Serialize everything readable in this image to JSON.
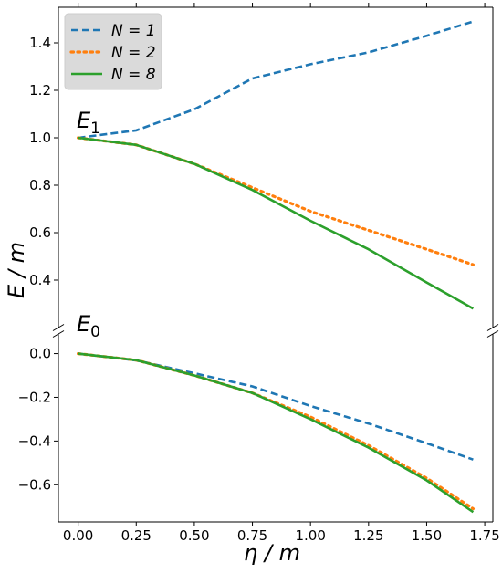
{
  "chart_data": {
    "type": "line",
    "xlabel": "η / m",
    "ylabel": "E / m",
    "x_ticks": [
      0.0,
      0.25,
      0.5,
      0.75,
      1.0,
      1.25,
      1.5,
      1.75
    ],
    "x_tick_labels": [
      "0.00",
      "0.25",
      "0.50",
      "0.75",
      "1.00",
      "1.25",
      "1.50",
      "1.75"
    ],
    "xlim": [
      -0.085,
      1.785
    ],
    "broken_y_axis": true,
    "grid": false,
    "legend": {
      "placement": "top-left",
      "entries": [
        {
          "label": "N = 1",
          "color": "#1f77b4",
          "style": "dashed"
        },
        {
          "label": "N = 2",
          "color": "#ff7f0e",
          "style": "dotted"
        },
        {
          "label": "N = 8",
          "color": "#2ca02c",
          "style": "solid"
        }
      ]
    },
    "panels": [
      {
        "label": "E1",
        "label_main": "E",
        "label_sub": "1",
        "ylim": [
          0.2,
          1.55
        ],
        "y_ticks": [
          0.4,
          0.6,
          0.8,
          1.0,
          1.2,
          1.4
        ],
        "y_tick_labels": [
          "0.4",
          "0.6",
          "0.8",
          "1.0",
          "1.2",
          "1.4"
        ],
        "x": [
          0.0,
          0.25,
          0.5,
          0.75,
          1.0,
          1.25,
          1.5,
          1.7
        ],
        "series": [
          {
            "name": "N = 1",
            "color": "#1f77b4",
            "style": "dashed",
            "values": [
              1.0,
              1.031,
              1.12,
              1.25,
              1.31,
              1.36,
              1.43,
              1.49
            ]
          },
          {
            "name": "N = 2",
            "color": "#ff7f0e",
            "style": "dotted",
            "values": [
              1.0,
              0.97,
              0.89,
              0.79,
              0.69,
              0.61,
              0.53,
              0.465
            ]
          },
          {
            "name": "N = 8",
            "color": "#2ca02c",
            "style": "solid",
            "values": [
              1.0,
              0.97,
              0.89,
              0.78,
              0.65,
              0.53,
              0.39,
              0.28
            ]
          }
        ]
      },
      {
        "label": "E0",
        "label_main": "E",
        "label_sub": "0",
        "ylim": [
          -0.77,
          0.09
        ],
        "y_ticks": [
          0.0,
          -0.2,
          -0.4,
          -0.6
        ],
        "y_tick_labels": [
          "0.0",
          "−0.2",
          "−0.4",
          "−0.6"
        ],
        "x": [
          0.0,
          0.25,
          0.5,
          0.75,
          1.0,
          1.25,
          1.5,
          1.7
        ],
        "series": [
          {
            "name": "N = 1",
            "color": "#1f77b4",
            "style": "dashed",
            "values": [
              0.0,
              -0.031,
              -0.09,
              -0.15,
              -0.24,
              -0.32,
              -0.41,
              -0.485
            ]
          },
          {
            "name": "N = 2",
            "color": "#ff7f0e",
            "style": "dotted",
            "values": [
              0.0,
              -0.03,
              -0.1,
              -0.18,
              -0.29,
              -0.42,
              -0.57,
              -0.71
            ]
          },
          {
            "name": "N = 8",
            "color": "#2ca02c",
            "style": "solid",
            "values": [
              0.0,
              -0.03,
              -0.1,
              -0.18,
              -0.3,
              -0.43,
              -0.58,
              -0.725
            ]
          }
        ]
      }
    ]
  }
}
